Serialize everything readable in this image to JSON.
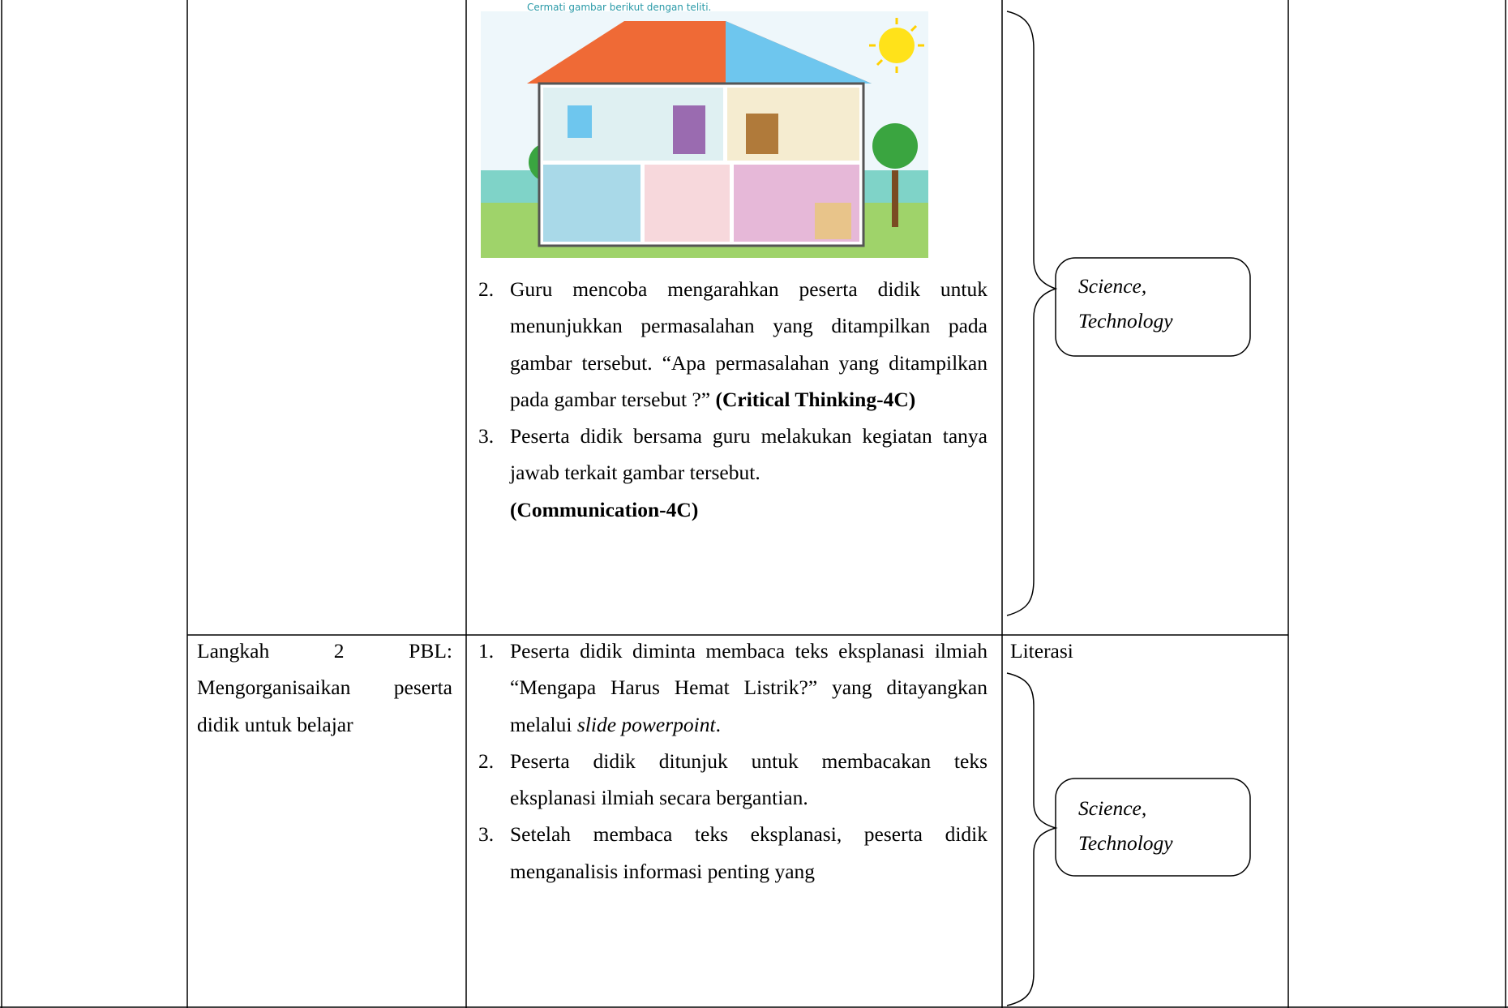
{
  "image_caption": "Cermati gambar berikut dengan teliti.",
  "rows": [
    {
      "items": [
        {
          "number": "2.",
          "text": "Guru mencoba mengarahkan peserta didik untuk menunjukkan permasalahan yang ditampilkan pada gambar tersebut. “Apa permasalahan yang ditampilkan pada gambar tersebut ?”",
          "tag": "(Critical Thinking-4C)"
        },
        {
          "number": "3.",
          "text": "Peserta didik bersama guru melakukan kegiatan tanya jawab terkait gambar tersebut.",
          "tag": "(Communication-4C)"
        }
      ],
      "note": "Science, Technology"
    },
    {
      "step": "Langkah 2 PBL: Mengorganisaikan peserta didik untuk belajar",
      "items": [
        {
          "number": "1.",
          "text": "Peserta didik diminta membaca teks eksplanasi ilmiah “Mengapa Harus Hemat Listrik?” yang ditayangkan melalui",
          "emphasis": "slide powerpoint",
          "end": "."
        },
        {
          "number": "2.",
          "text": "Peserta didik ditunjuk untuk membacakan teks eksplanasi ilmiah secara bergantian."
        },
        {
          "number": "3.",
          "text": "Setelah membaca teks eksplanasi, peserta didik menganalisis informasi penting yang"
        }
      ],
      "label": "Literasi",
      "note": "Science, Technology"
    }
  ]
}
